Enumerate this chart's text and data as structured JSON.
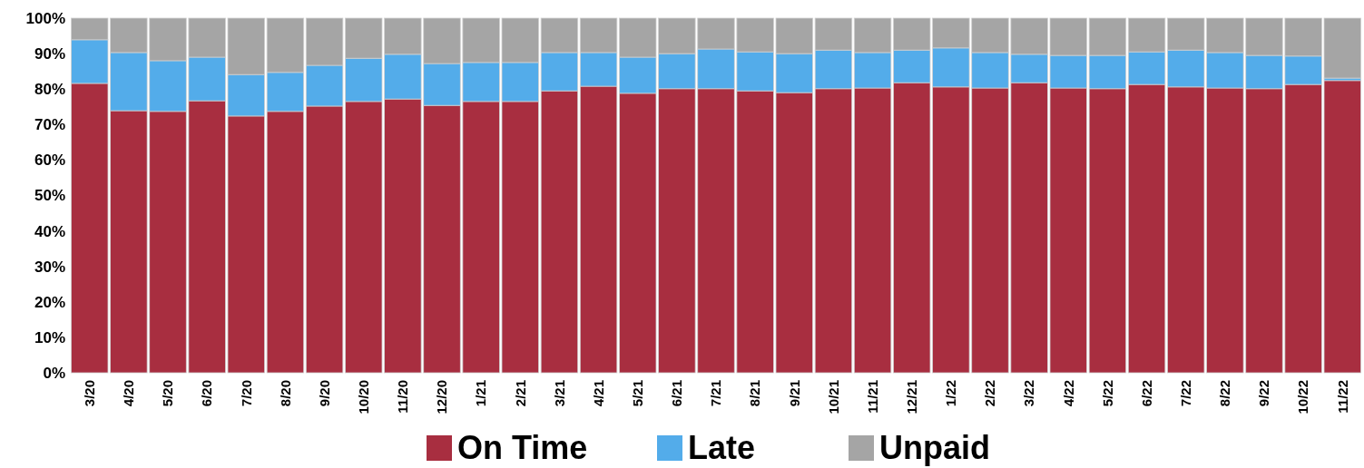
{
  "chart_data": {
    "type": "bar",
    "stacked": true,
    "legend": "bottom",
    "categories": [
      "3/20",
      "4/20",
      "5/20",
      "6/20",
      "7/20",
      "8/20",
      "9/20",
      "10/20",
      "11/20",
      "12/20",
      "1/21",
      "2/21",
      "3/21",
      "4/21",
      "5/21",
      "6/21",
      "7/21",
      "8/21",
      "9/21",
      "10/21",
      "11/21",
      "12/21",
      "1/22",
      "2/22",
      "3/22",
      "4/22",
      "5/22",
      "6/22",
      "7/22",
      "8/22",
      "9/22",
      "10/22",
      "11/22"
    ],
    "series": [
      {
        "name": "On Time",
        "color": "#a82e40",
        "values": [
          81.6,
          73.9,
          73.7,
          76.7,
          72.4,
          73.7,
          75.2,
          76.5,
          77.2,
          75.4,
          76.5,
          76.5,
          79.5,
          80.8,
          78.8,
          80.1,
          80.1,
          79.5,
          79.0,
          80.1,
          80.3,
          81.8,
          80.6,
          80.3,
          81.8,
          80.3,
          80.1,
          81.3,
          80.6,
          80.3,
          80.1,
          81.3,
          82.4
        ]
      },
      {
        "name": "Late",
        "color": "#53acea",
        "values": [
          12.3,
          16.4,
          14.3,
          12.3,
          11.7,
          11.0,
          11.5,
          12.2,
          12.6,
          11.8,
          11.0,
          11.0,
          10.8,
          9.5,
          10.2,
          9.9,
          11.2,
          11.0,
          11.0,
          10.9,
          10.0,
          9.2,
          11.0,
          10.0,
          8.0,
          9.2,
          9.4,
          9.2,
          10.4,
          10.0,
          9.4,
          8.0,
          0.7
        ]
      },
      {
        "name": "Unpaid",
        "color": "#a5a5a5",
        "values": [
          6.1,
          9.7,
          12.0,
          11.0,
          15.9,
          15.3,
          13.3,
          11.3,
          10.2,
          12.8,
          12.5,
          12.5,
          9.7,
          9.7,
          11.0,
          10.0,
          8.7,
          9.5,
          10.0,
          9.0,
          9.7,
          9.0,
          8.4,
          9.7,
          10.2,
          10.5,
          10.5,
          9.5,
          9.0,
          9.7,
          10.5,
          10.7,
          16.9
        ]
      }
    ],
    "ylim": [
      0,
      100
    ],
    "yticks": [
      {
        "value": 0,
        "label": "0%"
      },
      {
        "value": 10,
        "label": "10%"
      },
      {
        "value": 20,
        "label": "20%"
      },
      {
        "value": 30,
        "label": "30%"
      },
      {
        "value": 40,
        "label": "40%"
      },
      {
        "value": 50,
        "label": "50%"
      },
      {
        "value": 60,
        "label": "60%"
      },
      {
        "value": 70,
        "label": "70%"
      },
      {
        "value": 80,
        "label": "80%"
      },
      {
        "value": 90,
        "label": "90%"
      },
      {
        "value": 100,
        "label": "100%"
      }
    ]
  }
}
